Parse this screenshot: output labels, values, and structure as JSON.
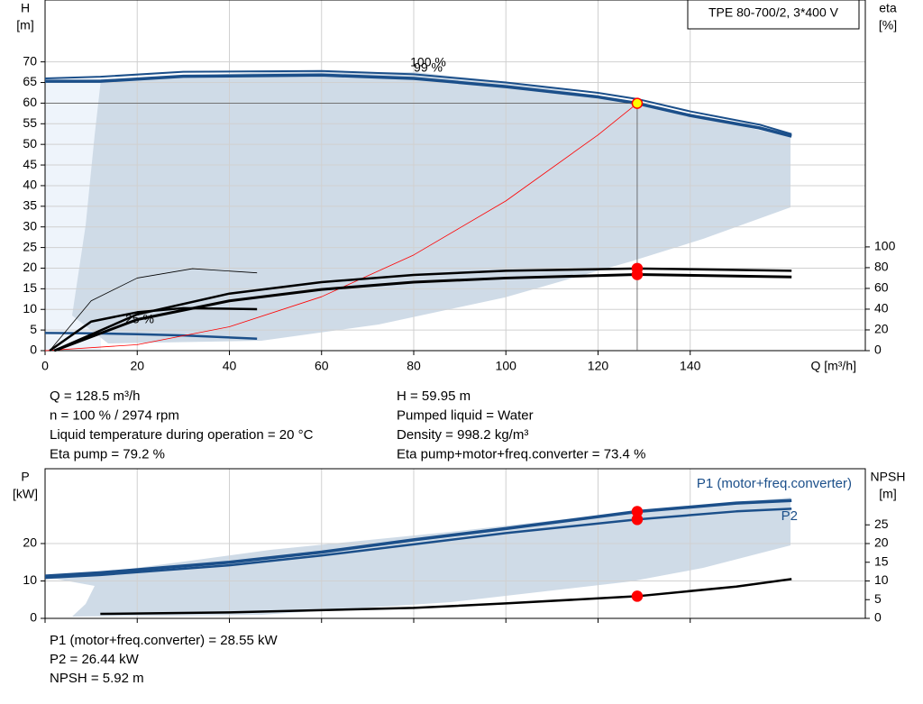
{
  "chart_data": [
    {
      "type": "line",
      "title": "TPE 80-700/2, 3*400 V",
      "ylabel": "H",
      "yunit": "[m]",
      "y2label": "eta",
      "y2unit": "[%]",
      "xlabel": "Q [m³/h]",
      "xlim": [
        0,
        178
      ],
      "xticks": [
        0,
        20,
        40,
        60,
        80,
        100,
        120,
        140
      ],
      "ylim": [
        0,
        85
      ],
      "yticks": [
        0,
        5,
        10,
        15,
        20,
        25,
        30,
        35,
        40,
        45,
        50,
        55,
        60,
        65,
        70
      ],
      "y2lim": [
        0,
        338
      ],
      "y2ticks": [
        0,
        20,
        40,
        60,
        80,
        100
      ],
      "grid": true,
      "marker_x": 128.5,
      "annotations": [
        "100 %",
        "99 %",
        "25 %"
      ],
      "series": [
        {
          "color": "#1b4f8a",
          "width": 2,
          "x": [
            0,
            12,
            30,
            60,
            80,
            100,
            120,
            128.5,
            140,
            155,
            162
          ],
          "values": [
            66,
            66.4,
            67.6,
            67.8,
            67,
            65,
            62.5,
            61,
            58,
            54.8,
            52.5
          ]
        },
        {
          "color": "#1b4f8a",
          "width": 3.5,
          "crosshair": true,
          "marker": "#ffff00",
          "x": [
            0,
            12,
            30,
            60,
            80,
            100,
            120,
            128.5,
            140,
            155,
            162
          ],
          "values": [
            65.3,
            65.3,
            66.5,
            66.8,
            66,
            64,
            61.5,
            59.95,
            57,
            54,
            52
          ]
        },
        {
          "color": "#1b4f8a",
          "width": 2.5,
          "x": [
            0,
            10,
            20,
            30,
            46
          ],
          "values": [
            4.3,
            4.2,
            4,
            3.7,
            2.9
          ]
        },
        {
          "color": "#ff0000",
          "width": 0.8,
          "x": [
            0,
            20,
            40,
            60,
            80,
            100,
            120,
            128.5
          ],
          "values": [
            0,
            1.45,
            5.8,
            13.07,
            23.2,
            36.3,
            52.3,
            59.95
          ]
        },
        {
          "color": "#000000",
          "width": 0.8,
          "axis": "y2",
          "x": [
            1,
            10,
            20,
            32,
            46
          ],
          "values": [
            0,
            48,
            70,
            79,
            75
          ]
        },
        {
          "color": "#000000",
          "width": 2.5,
          "axis": "y2",
          "x": [
            1,
            10,
            20,
            30,
            46
          ],
          "values": [
            0,
            28,
            37,
            41,
            40
          ]
        },
        {
          "color": "#000000",
          "width": 2.5,
          "axis": "y2",
          "marker": "#ff0000",
          "x": [
            2,
            20,
            40,
            60,
            80,
            100,
            128.5,
            162
          ],
          "values": [
            0,
            35,
            55,
            66,
            73,
            77,
            79.2,
            77
          ]
        },
        {
          "color": "#000000",
          "width": 3,
          "axis": "y2",
          "marker": "#ff0000",
          "x": [
            2,
            20,
            40,
            60,
            80,
            100,
            128.5,
            162
          ],
          "values": [
            0,
            30,
            48,
            59,
            66,
            70,
            73.4,
            71
          ]
        }
      ]
    },
    {
      "type": "line",
      "ylabel": "P",
      "yunit": "[kW]",
      "y2label": "NPSH",
      "y2unit": "[m]",
      "xlim": [
        0,
        178
      ],
      "xticks": [
        0,
        20,
        40,
        60,
        80,
        100,
        120,
        140
      ],
      "ylim": [
        0,
        40
      ],
      "yticks": [
        0,
        10,
        20
      ],
      "y2lim": [
        0,
        40
      ],
      "y2ticks": [
        0,
        5,
        10,
        15,
        20,
        25
      ],
      "grid": true,
      "marker_x": 128.5,
      "series": [
        {
          "name": "P1 (motor+freq.converter)",
          "color": "#1b4f8a",
          "width": 3.5,
          "marker": "#ff0000",
          "x": [
            0,
            12,
            40,
            60,
            80,
            100,
            128.5,
            150,
            162
          ],
          "values": [
            11.3,
            12.2,
            15,
            17.7,
            21,
            24,
            28.55,
            30.8,
            31.5
          ]
        },
        {
          "name": "P2",
          "color": "#1b4f8a",
          "width": 2.5,
          "marker": "#ff0000",
          "x": [
            0,
            12,
            40,
            60,
            80,
            100,
            128.5,
            150,
            162
          ],
          "values": [
            10.8,
            11.6,
            14.2,
            16.8,
            19.8,
            22.8,
            26.44,
            28.6,
            29.3
          ]
        },
        {
          "color": "#000000",
          "width": 2.5,
          "axis": "y2",
          "marker": "#ff0000",
          "x": [
            12,
            40,
            80,
            100,
            128.5,
            150,
            162
          ],
          "values": [
            1.2,
            1.6,
            2.8,
            4,
            5.92,
            8.5,
            10.5
          ]
        }
      ]
    }
  ],
  "info_top": [
    "Q = 128.5 m³/h",
    "n = 100 % / 2974 rpm",
    "Liquid temperature during operation = 20 °C",
    "Eta pump = 79.2 %",
    "H = 59.95 m",
    "Pumped liquid = Water",
    "Density = 998.2 kg/m³",
    "Eta pump+motor+freq.converter = 73.4 %"
  ],
  "info_bottom": [
    "P1 (motor+freq.converter) = 28.55 kW",
    "P2 = 26.44 kW",
    "NPSH = 5.92 m"
  ]
}
